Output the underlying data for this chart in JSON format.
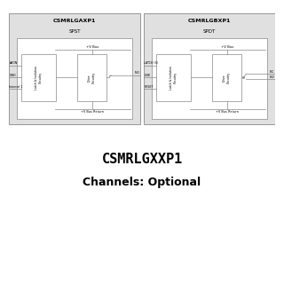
{
  "bg_color": "#ffffff",
  "panel_bg": "#e0e0e0",
  "box_color": "#ffffff",
  "line_color": "#888888",
  "text_color": "#000000",
  "title": "CSMRLGXXP1",
  "subtitle": "Channels: Optional",
  "left_panel": {
    "title": "CSMRLGAXP1",
    "subtitle": "SPST",
    "inputs": [
      "AKON",
      "GND",
      "Internal 1"
    ],
    "outputs": [
      "NO"
    ],
    "box1_label": "Latch & Isolation\nCircuitry",
    "box2_label": "Drive\nCircuitry",
    "pv_bus_label": "+V Bus",
    "pv_bus_return_label": "+V Bus Return"
  },
  "right_panel": {
    "title": "CSMRLGBXP1",
    "subtitle": "SPDT",
    "inputs": [
      "LATCH (S)",
      "UNK",
      "RESET"
    ],
    "outputs": [
      "NC",
      "NO"
    ],
    "box1_label": "Latch & Isolation\nCircuitry",
    "box2_label": "Drive\nCircuitry",
    "pv_bus_label": "+V Bus",
    "pv_bus_return_label": "+V Bus Return"
  }
}
